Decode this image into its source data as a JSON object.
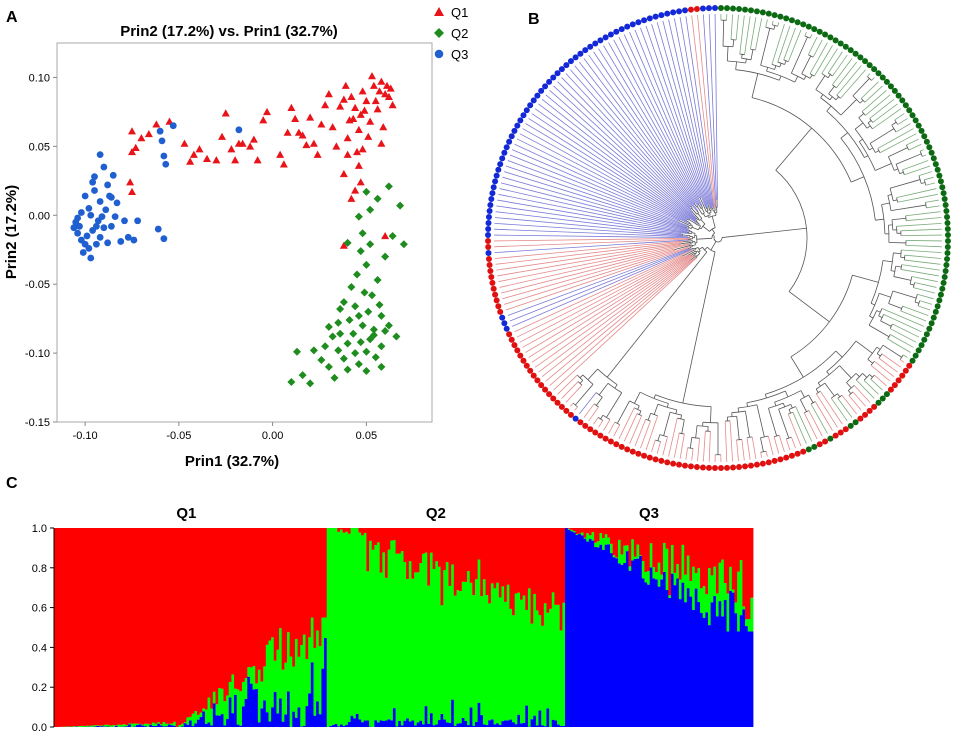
{
  "panels": {
    "a": "A",
    "b": "B",
    "c": "C"
  },
  "colors": {
    "q1": "#e8141a",
    "q2": "#1e8c1e",
    "q3": "#1f5fcf",
    "dot_green": "#0b6a12",
    "dot_blue": "#1328d6",
    "dot_red": "#e01010",
    "c_red": "#ff0000",
    "c_green": "#00ff00",
    "c_blue": "#0000ff"
  },
  "chart_data": [
    {
      "type": "scatter",
      "title": "Prin2 (17.2%) vs. Prin1 (32.7%)",
      "xlabel": "Prin1 (32.7%)",
      "ylabel": "Prin2 (17.2%)",
      "xlim": [
        -0.115,
        0.085
      ],
      "ylim": [
        -0.15,
        0.125
      ],
      "xticks": [
        "-0.10",
        "-0.05",
        "0.00",
        "0.05"
      ],
      "yticks": [
        "0.10",
        "0.05",
        "0.00",
        "-0.05",
        "-0.10",
        "-0.15"
      ],
      "grid": false,
      "legend": "top-right, outside",
      "series": [
        {
          "name": "Q1",
          "marker": "triangle",
          "points": [
            [
              -0.075,
              0.061
            ],
            [
              -0.075,
              0.046
            ],
            [
              -0.076,
              0.024
            ],
            [
              -0.075,
              0.017
            ],
            [
              -0.073,
              0.049
            ],
            [
              -0.07,
              0.056
            ],
            [
              -0.066,
              0.059
            ],
            [
              -0.062,
              0.066
            ],
            [
              -0.055,
              0.068
            ],
            [
              -0.047,
              0.052
            ],
            [
              -0.044,
              0.039
            ],
            [
              -0.042,
              0.044
            ],
            [
              -0.039,
              0.048
            ],
            [
              -0.035,
              0.041
            ],
            [
              -0.03,
              0.04
            ],
            [
              -0.027,
              0.057
            ],
            [
              -0.025,
              0.074
            ],
            [
              -0.022,
              0.048
            ],
            [
              -0.02,
              0.04
            ],
            [
              -0.018,
              0.052
            ],
            [
              -0.016,
              0.052
            ],
            [
              -0.012,
              0.05
            ],
            [
              -0.01,
              0.055
            ],
            [
              -0.008,
              0.04
            ],
            [
              -0.005,
              0.069
            ],
            [
              -0.003,
              0.075
            ],
            [
              0.004,
              0.044
            ],
            [
              0.006,
              0.037
            ],
            [
              0.008,
              0.06
            ],
            [
              0.01,
              0.078
            ],
            [
              0.012,
              0.07
            ],
            [
              0.014,
              0.06
            ],
            [
              0.016,
              0.058
            ],
            [
              0.018,
              0.051
            ],
            [
              0.02,
              0.071
            ],
            [
              0.022,
              0.052
            ],
            [
              0.024,
              0.044
            ],
            [
              0.026,
              0.066
            ],
            [
              0.028,
              0.08
            ],
            [
              0.03,
              0.088
            ],
            [
              0.032,
              0.064
            ],
            [
              0.034,
              0.05
            ],
            [
              0.036,
              0.079
            ],
            [
              0.038,
              0.084
            ],
            [
              0.039,
              0.094
            ],
            [
              0.04,
              0.056
            ],
            [
              0.041,
              0.069
            ],
            [
              0.042,
              0.086
            ],
            [
              0.043,
              0.07
            ],
            [
              0.044,
              0.078
            ],
            [
              0.045,
              0.046
            ],
            [
              0.046,
              0.062
            ],
            [
              0.047,
              0.073
            ],
            [
              0.048,
              0.09
            ],
            [
              0.049,
              0.076
            ],
            [
              0.05,
              0.083
            ],
            [
              0.051,
              0.057
            ],
            [
              0.052,
              0.068
            ],
            [
              0.053,
              0.101
            ],
            [
              0.054,
              0.094
            ],
            [
              0.055,
              0.083
            ],
            [
              0.056,
              0.077
            ],
            [
              0.057,
              0.09
            ],
            [
              0.058,
              0.097
            ],
            [
              0.059,
              0.064
            ],
            [
              0.06,
              0.088
            ],
            [
              0.061,
              0.094
            ],
            [
              0.062,
              0.086
            ],
            [
              0.063,
              0.092
            ],
            [
              0.064,
              0.08
            ],
            [
              0.046,
              0.036
            ],
            [
              0.047,
              0.024
            ],
            [
              0.044,
              0.018
            ],
            [
              0.04,
              0.044
            ],
            [
              0.038,
              0.03
            ],
            [
              0.042,
              0.012
            ],
            [
              0.038,
              -0.022
            ],
            [
              0.06,
              -0.015
            ],
            [
              0.048,
              0.048
            ],
            [
              0.058,
              0.052
            ]
          ]
        },
        {
          "name": "Q2",
          "marker": "diamond",
          "points": [
            [
              0.062,
              0.021
            ],
            [
              0.056,
              0.012
            ],
            [
              0.068,
              0.007
            ],
            [
              0.05,
              0.017
            ],
            [
              0.052,
              0.004
            ],
            [
              0.046,
              -0.001
            ],
            [
              0.064,
              -0.015
            ],
            [
              0.07,
              -0.021
            ],
            [
              0.048,
              -0.013
            ],
            [
              0.052,
              -0.021
            ],
            [
              0.04,
              -0.02
            ],
            [
              0.06,
              -0.03
            ],
            [
              0.047,
              -0.026
            ],
            [
              0.05,
              -0.036
            ],
            [
              0.045,
              -0.043
            ],
            [
              0.056,
              -0.047
            ],
            [
              0.042,
              -0.052
            ],
            [
              0.049,
              -0.056
            ],
            [
              0.053,
              -0.058
            ],
            [
              0.057,
              -0.065
            ],
            [
              0.044,
              -0.066
            ],
            [
              0.038,
              -0.063
            ],
            [
              0.058,
              -0.073
            ],
            [
              0.051,
              -0.07
            ],
            [
              0.046,
              -0.073
            ],
            [
              0.041,
              -0.076
            ],
            [
              0.035,
              -0.078
            ],
            [
              0.03,
              -0.081
            ],
            [
              0.048,
              -0.08
            ],
            [
              0.054,
              -0.083
            ],
            [
              0.06,
              -0.084
            ],
            [
              0.043,
              -0.086
            ],
            [
              0.036,
              -0.086
            ],
            [
              0.032,
              -0.088
            ],
            [
              0.052,
              -0.09
            ],
            [
              0.047,
              -0.092
            ],
            [
              0.04,
              -0.093
            ],
            [
              0.058,
              -0.095
            ],
            [
              0.028,
              -0.095
            ],
            [
              0.035,
              -0.098
            ],
            [
              0.05,
              -0.099
            ],
            [
              0.044,
              -0.1
            ],
            [
              0.038,
              -0.104
            ],
            [
              0.055,
              -0.103
            ],
            [
              0.046,
              -0.108
            ],
            [
              0.022,
              -0.098
            ],
            [
              0.026,
              -0.105
            ],
            [
              0.04,
              -0.112
            ],
            [
              0.05,
              -0.113
            ],
            [
              0.058,
              -0.11
            ],
            [
              0.013,
              -0.099
            ],
            [
              0.016,
              -0.116
            ],
            [
              0.01,
              -0.121
            ],
            [
              0.02,
              -0.122
            ],
            [
              0.03,
              -0.11
            ],
            [
              0.033,
              -0.118
            ],
            [
              0.054,
              -0.087
            ],
            [
              0.062,
              -0.08
            ],
            [
              0.066,
              -0.088
            ],
            [
              0.036,
              -0.068
            ]
          ]
        },
        {
          "name": "Q3",
          "marker": "circle",
          "points": [
            [
              -0.095,
              0.028
            ],
            [
              -0.092,
              0.044
            ],
            [
              -0.09,
              0.035
            ],
            [
              -0.088,
              0.022
            ],
            [
              -0.085,
              0.029
            ],
            [
              -0.087,
              0.014
            ],
            [
              -0.092,
              0.01
            ],
            [
              -0.095,
              0.018
            ],
            [
              -0.098,
              0.005
            ],
            [
              -0.1,
              0.014
            ],
            [
              -0.102,
              0.002
            ],
            [
              -0.104,
              -0.002
            ],
            [
              -0.105,
              -0.005
            ],
            [
              -0.106,
              -0.009
            ],
            [
              -0.104,
              -0.013
            ],
            [
              -0.102,
              -0.018
            ],
            [
              -0.1,
              -0.021
            ],
            [
              -0.098,
              -0.024
            ],
            [
              -0.101,
              -0.027
            ],
            [
              -0.097,
              -0.031
            ],
            [
              -0.094,
              -0.021
            ],
            [
              -0.092,
              -0.016
            ],
            [
              -0.09,
              -0.009
            ],
            [
              -0.088,
              -0.02
            ],
            [
              -0.086,
              -0.008
            ],
            [
              -0.084,
              -0.001
            ],
            [
              -0.096,
              -0.011
            ],
            [
              -0.093,
              -0.004
            ],
            [
              -0.091,
              -0.001
            ],
            [
              -0.089,
              0.004
            ],
            [
              -0.086,
              0.013
            ],
            [
              -0.083,
              0.009
            ],
            [
              -0.081,
              -0.019
            ],
            [
              -0.079,
              -0.004
            ],
            [
              -0.077,
              -0.016
            ],
            [
              -0.074,
              -0.018
            ],
            [
              -0.072,
              -0.004
            ],
            [
              -0.103,
              -0.008
            ],
            [
              -0.099,
              -0.015
            ],
            [
              -0.097,
              0.0
            ],
            [
              -0.06,
              0.061
            ],
            [
              -0.059,
              0.054
            ],
            [
              -0.058,
              0.043
            ],
            [
              -0.057,
              0.037
            ],
            [
              -0.061,
              -0.01
            ],
            [
              -0.058,
              -0.017
            ],
            [
              -0.053,
              0.065
            ],
            [
              -0.018,
              0.062
            ],
            [
              -0.096,
              0.024
            ],
            [
              -0.094,
              -0.008
            ]
          ]
        }
      ]
    },
    {
      "type": "dendrogram",
      "layout": "circular",
      "leaves": {
        "order": "clockwise from top",
        "groups": [
          {
            "color": "dot_green",
            "count": 82
          },
          {
            "color": "dot_red",
            "count": 6
          },
          {
            "color": "dot_green",
            "count": 3
          },
          {
            "color": "dot_red",
            "count": 4
          },
          {
            "color": "dot_green",
            "count": 2
          },
          {
            "color": "dot_red",
            "count": 3
          },
          {
            "color": "dot_green",
            "count": 1
          },
          {
            "color": "dot_red",
            "count": 2
          },
          {
            "color": "dot_green",
            "count": 2
          },
          {
            "color": "dot_red",
            "count": 40
          },
          {
            "color": "dot_blue",
            "count": 1
          },
          {
            "color": "dot_red",
            "count": 18
          },
          {
            "color": "dot_blue",
            "count": 3
          },
          {
            "color": "dot_red",
            "count": 10
          },
          {
            "color": "dot_blue",
            "count": 1
          },
          {
            "color": "dot_red",
            "count": 2
          },
          {
            "color": "dot_blue",
            "count": 55
          },
          {
            "color": "dot_red",
            "count": 2
          },
          {
            "color": "dot_blue",
            "count": 3
          }
        ]
      }
    },
    {
      "type": "bar",
      "stacked": true,
      "yticks": [
        "1.0",
        "0.8",
        "0.6",
        "0.4",
        "0.2",
        "0.0"
      ],
      "ylim": [
        0,
        1
      ],
      "groups": [
        {
          "name": "Q1",
          "count": 103
        },
        {
          "name": "Q2",
          "count": 90
        },
        {
          "name": "Q3",
          "count": 71
        }
      ],
      "series": [
        {
          "color": "c_red"
        },
        {
          "color": "c_green"
        },
        {
          "color": "c_blue"
        }
      ]
    }
  ]
}
